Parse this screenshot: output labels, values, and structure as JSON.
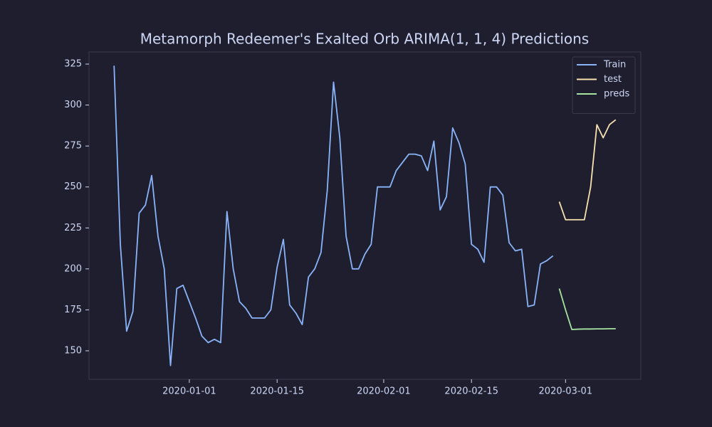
{
  "chart_data": {
    "type": "line",
    "title": "Metamorph Redeemer's Exalted Orb ARIMA(1, 1, 4) Predictions",
    "xlim": [
      "2019-12-16",
      "2020-03-13"
    ],
    "xticks": [
      "2020-01-01",
      "2020-01-15",
      "2020-02-01",
      "2020-02-15",
      "2020-03-01"
    ],
    "ylim": [
      132.6,
      332.4
    ],
    "yticks": [
      150,
      175,
      200,
      225,
      250,
      275,
      300,
      325
    ],
    "legend": "upper right",
    "series": [
      {
        "name": "Train",
        "color": "#89b4fa",
        "x": [
          "2019-12-20",
          "2019-12-21",
          "2019-12-22",
          "2019-12-23",
          "2019-12-24",
          "2019-12-25",
          "2019-12-26",
          "2019-12-27",
          "2019-12-28",
          "2019-12-29",
          "2019-12-30",
          "2019-12-31",
          "2020-01-01",
          "2020-01-02",
          "2020-01-03",
          "2020-01-04",
          "2020-01-05",
          "2020-01-06",
          "2020-01-07",
          "2020-01-08",
          "2020-01-09",
          "2020-01-10",
          "2020-01-11",
          "2020-01-12",
          "2020-01-13",
          "2020-01-14",
          "2020-01-15",
          "2020-01-16",
          "2020-01-17",
          "2020-01-18",
          "2020-01-19",
          "2020-01-20",
          "2020-01-21",
          "2020-01-22",
          "2020-01-23",
          "2020-01-24",
          "2020-01-25",
          "2020-01-26",
          "2020-01-27",
          "2020-01-28",
          "2020-01-29",
          "2020-01-30",
          "2020-01-31",
          "2020-02-01",
          "2020-02-02",
          "2020-02-03",
          "2020-02-04",
          "2020-02-05",
          "2020-02-06",
          "2020-02-07",
          "2020-02-08",
          "2020-02-09",
          "2020-02-10",
          "2020-02-11",
          "2020-02-12",
          "2020-02-13",
          "2020-02-14",
          "2020-02-15",
          "2020-02-16",
          "2020-02-17",
          "2020-02-18",
          "2020-02-19",
          "2020-02-20",
          "2020-02-21",
          "2020-02-22",
          "2020-02-23",
          "2020-02-24",
          "2020-02-25",
          "2020-02-26",
          "2020-02-27",
          "2020-02-28"
        ],
        "values": [
          324,
          215,
          162,
          174,
          234,
          239,
          257,
          220,
          200,
          141,
          188,
          190,
          180,
          170,
          159,
          155,
          157,
          155,
          235,
          200,
          180,
          176,
          170,
          170,
          170,
          175,
          201,
          218,
          178,
          173,
          166,
          195,
          200,
          210,
          248,
          314,
          280,
          220,
          200,
          200,
          209,
          215,
          250,
          250,
          250,
          260,
          265,
          270,
          270,
          269,
          260,
          278,
          236,
          244,
          286,
          277,
          264,
          215,
          212,
          204,
          250,
          250,
          245,
          216,
          211,
          212,
          177,
          178,
          203,
          205,
          208
        ]
      },
      {
        "name": "test",
        "color": "#f9e2af",
        "x": [
          "2020-02-29",
          "2020-03-01",
          "2020-03-02",
          "2020-03-03",
          "2020-03-04",
          "2020-03-05",
          "2020-03-06",
          "2020-03-07",
          "2020-03-08",
          "2020-03-09"
        ],
        "values": [
          241,
          230,
          230,
          230,
          230,
          250,
          288,
          280,
          288,
          291
        ]
      },
      {
        "name": "preds",
        "color": "#a6e3a1",
        "x": [
          "2020-02-29",
          "2020-03-01",
          "2020-03-02",
          "2020-03-03",
          "2020-03-04",
          "2020-03-05",
          "2020-03-06",
          "2020-03-07",
          "2020-03-08",
          "2020-03-09"
        ],
        "values": [
          188,
          175,
          163,
          163.2,
          163.3,
          163.3,
          163.4,
          163.4,
          163.5,
          163.5
        ]
      }
    ]
  }
}
